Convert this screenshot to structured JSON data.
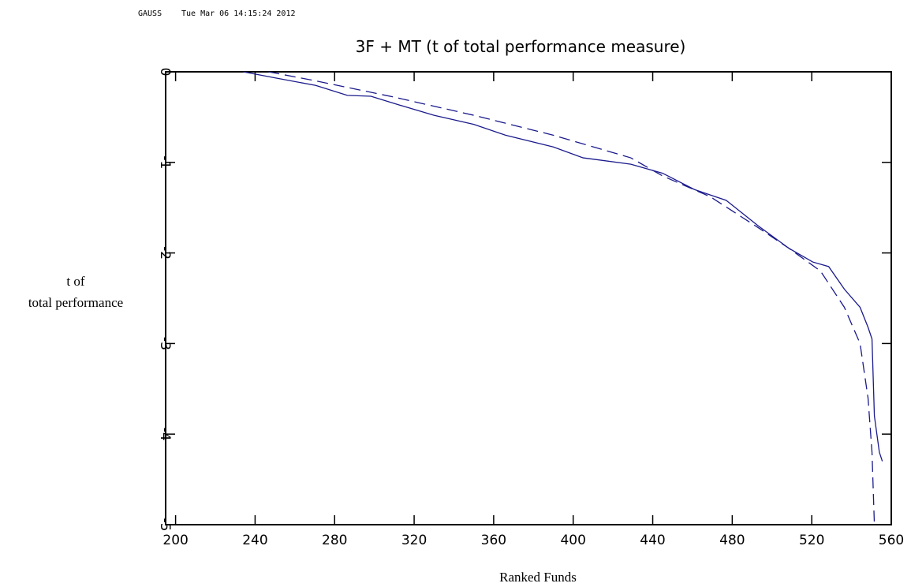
{
  "chart_data": {
    "type": "line",
    "header": [
      "GAUSS",
      "Tue Mar 06 14:15:24 2012"
    ],
    "title": "3F + MT (t of total performance measure)",
    "x_label": "Ranked Funds",
    "y_label": [
      "t of",
      "total performance"
    ],
    "xlim": [
      195,
      560
    ],
    "xticks": [
      200,
      240,
      280,
      320,
      360,
      400,
      440,
      480,
      520,
      560
    ],
    "ylim": [
      -5,
      0
    ],
    "yticks": [
      0,
      -1,
      -2,
      -3,
      -4,
      -5
    ],
    "series": [
      {
        "color": "#1a1a8c",
        "dashed": false,
        "x": [
          234,
          250.7,
          270.5,
          286.4,
          298.3,
          310,
          330,
          350,
          366,
          390,
          405,
          429,
          445,
          461,
          477,
          493,
          508.6,
          520.5,
          528.5,
          536.4,
          544.3,
          548.3,
          550.3,
          551.5,
          554,
          555.5
        ],
        "values": [
          0,
          -0.07,
          -0.15,
          -0.26,
          -0.27,
          -0.35,
          -0.48,
          -0.58,
          -0.7,
          -0.83,
          -0.95,
          -1.02,
          -1.12,
          -1.3,
          -1.42,
          -1.7,
          -1.95,
          -2.1,
          -2.15,
          -2.4,
          -2.6,
          -2.82,
          -2.95,
          -3.8,
          -4.2,
          -4.3
        ]
      },
      {
        "color": "#1a1a8c",
        "dashed": true,
        "x": [
          246.7,
          270.5,
          310,
          350,
          390,
          429,
          445,
          469,
          493,
          508.6,
          524.4,
          536.4,
          544.3,
          548.3,
          550.3,
          551.5
        ],
        "values": [
          0,
          -0.1,
          -0.28,
          -0.48,
          -0.7,
          -0.95,
          -1.15,
          -1.38,
          -1.72,
          -1.95,
          -2.2,
          -2.6,
          -3.0,
          -3.6,
          -4.2,
          -5.0
        ]
      }
    ]
  }
}
